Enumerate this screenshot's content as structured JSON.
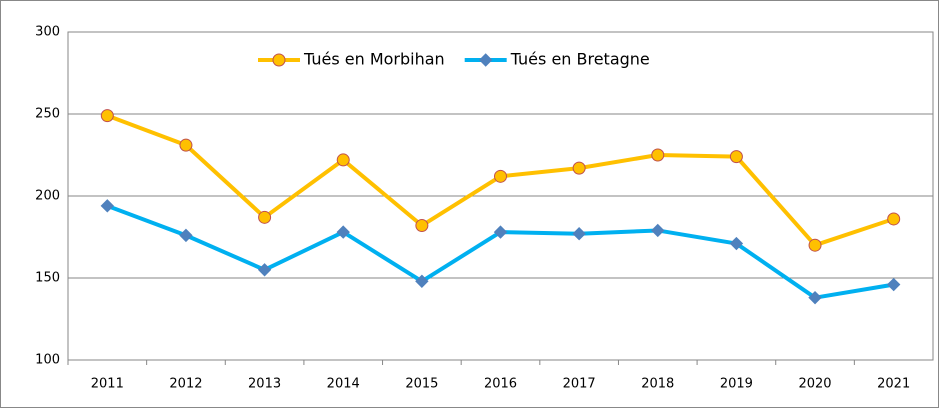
{
  "chart_data": {
    "type": "line",
    "categories": [
      "2011",
      "2012",
      "2013",
      "2014",
      "2015",
      "2016",
      "2017",
      "2018",
      "2019",
      "2020",
      "2021"
    ],
    "series": [
      {
        "name": "Tués en Morbihan",
        "color": "#ffc000",
        "marker": "circle",
        "marker_edge": "#c0504d",
        "values": [
          249,
          231,
          187,
          222,
          182,
          212,
          217,
          225,
          224,
          170,
          186
        ]
      },
      {
        "name": "Tués en Bretagne",
        "color": "#00b0f0",
        "marker": "diamond",
        "marker_edge": "#4f81bd",
        "values": [
          194,
          176,
          155,
          178,
          148,
          178,
          177,
          179,
          171,
          138,
          146
        ]
      }
    ],
    "ylim": [
      100,
      300
    ],
    "yticks": [
      100,
      150,
      200,
      250,
      300
    ],
    "grid": true,
    "legend": "top"
  }
}
